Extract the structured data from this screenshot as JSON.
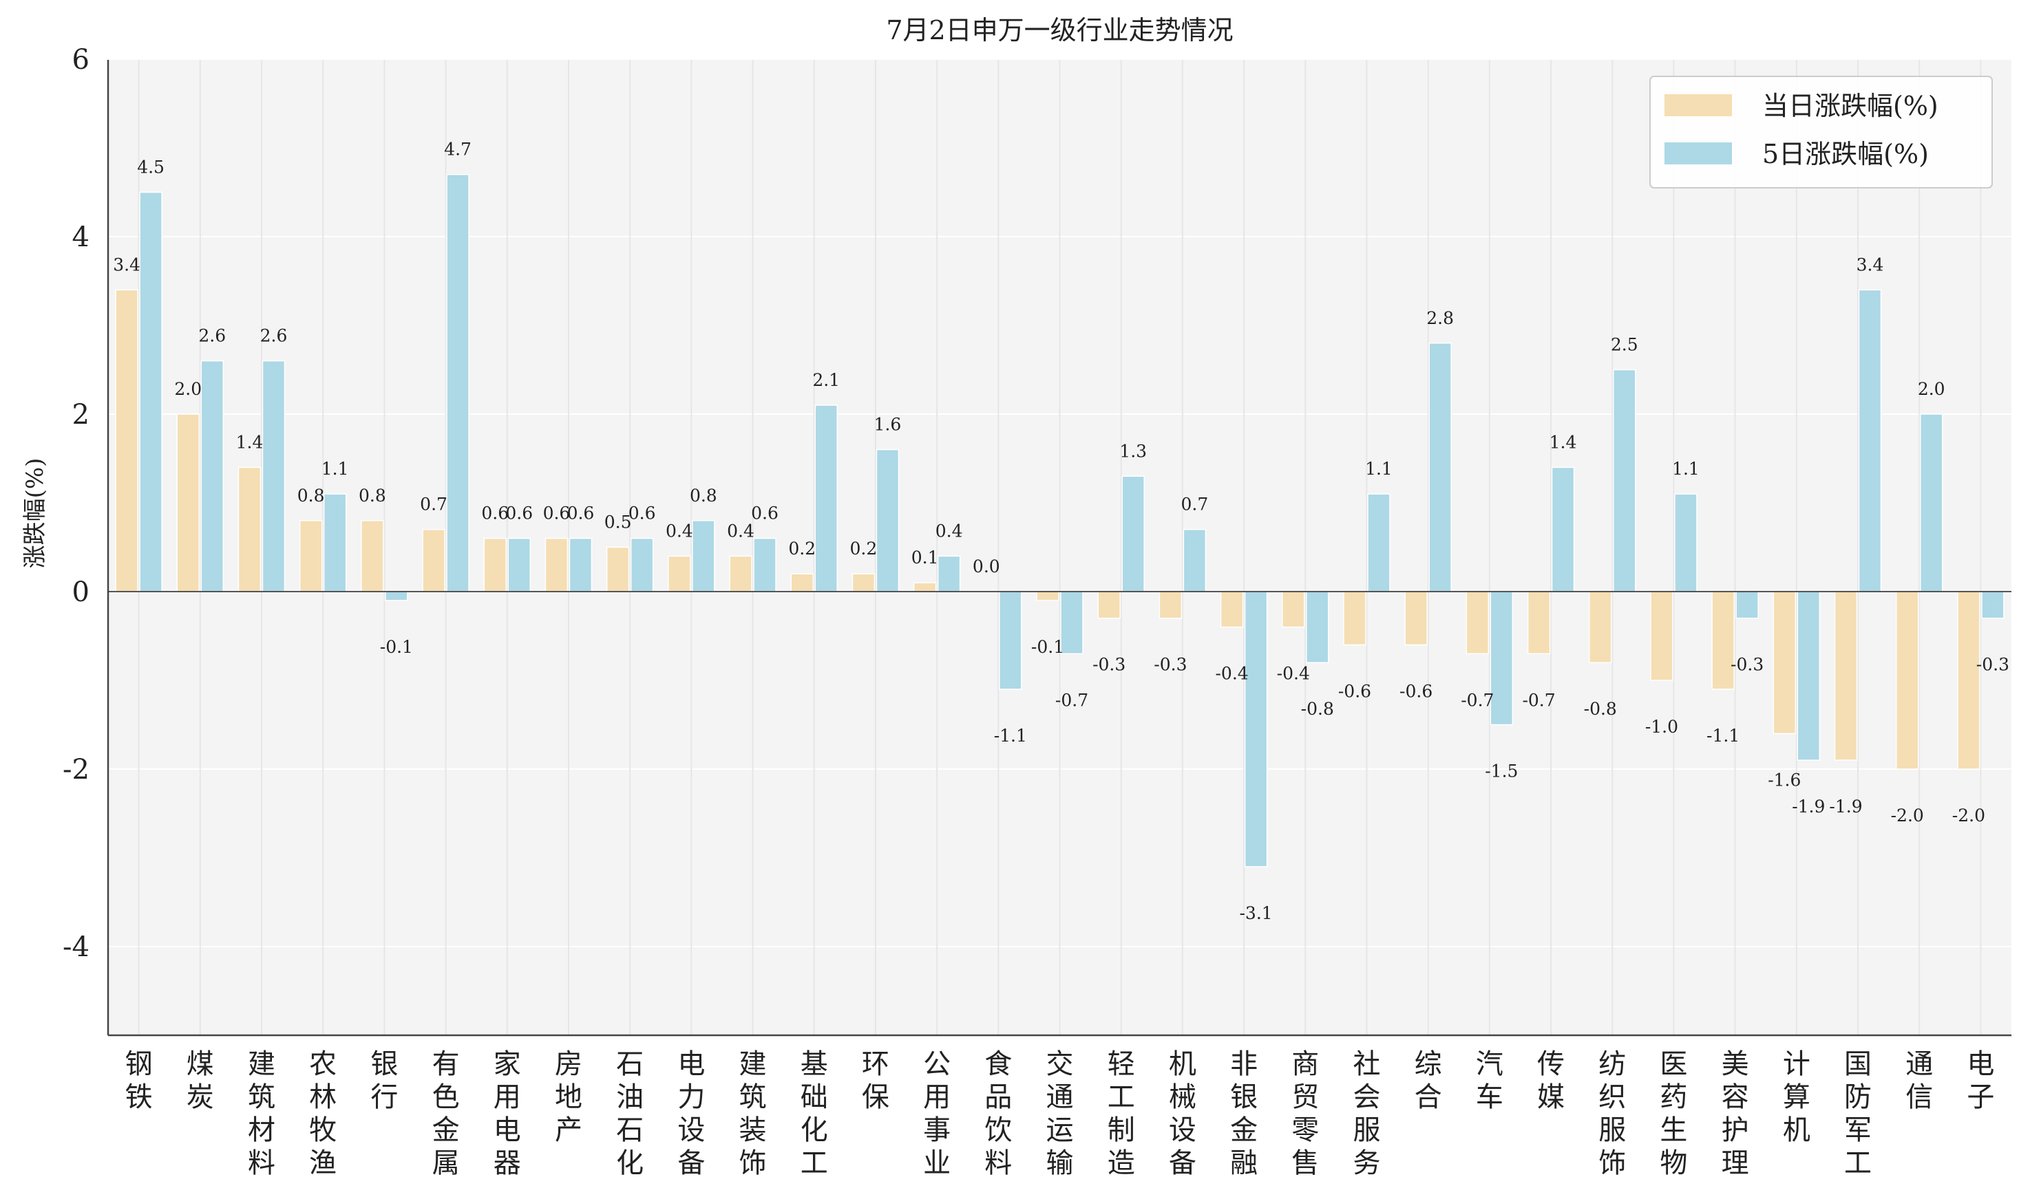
{
  "chart_data": {
    "type": "bar",
    "title": "7月2日申万一级行业走势情况",
    "ylabel": "涨跌幅(%)",
    "xlabel": "",
    "ylim": [
      -5,
      6
    ],
    "yticks": [
      6,
      4,
      2,
      0,
      -2,
      -4
    ],
    "grid": true,
    "legend_position": "top-right",
    "categories": [
      "钢铁",
      "煤炭",
      "建筑材料",
      "农林牧渔",
      "银行",
      "有色金属",
      "家用电器",
      "房地产",
      "石油石化",
      "电力设备",
      "建筑装饰",
      "基础化工",
      "环保",
      "公用事业",
      "食品饮料",
      "交通运输",
      "轻工制造",
      "机械设备",
      "非银金融",
      "商贸零售",
      "社会服务",
      "综合",
      "汽车",
      "传媒",
      "纺织服饰",
      "医药生物",
      "美容护理",
      "计算机",
      "国防军工",
      "通信",
      "电子"
    ],
    "series": [
      {
        "name": "当日涨跌幅(%)",
        "color": "#f5deb3",
        "values": [
          3.4,
          2.0,
          1.4,
          0.8,
          0.8,
          0.7,
          0.6,
          0.6,
          0.5,
          0.4,
          0.4,
          0.2,
          0.2,
          0.1,
          0.0,
          -0.1,
          -0.3,
          -0.3,
          -0.4,
          -0.4,
          -0.6,
          -0.6,
          -0.7,
          -0.7,
          -0.8,
          -1.0,
          -1.1,
          -1.6,
          -1.9,
          -2.0,
          -2.0
        ]
      },
      {
        "name": "5日涨跌幅(%)",
        "color": "#add8e6",
        "values": [
          4.5,
          2.6,
          2.6,
          1.1,
          -0.1,
          4.7,
          0.6,
          0.6,
          0.6,
          0.8,
          0.6,
          2.1,
          1.6,
          0.4,
          -1.1,
          -0.7,
          1.3,
          0.7,
          -3.1,
          -0.8,
          1.1,
          2.8,
          -1.5,
          1.4,
          2.5,
          1.1,
          -0.3,
          -1.9,
          3.4,
          2.0,
          -0.3
        ]
      }
    ]
  }
}
